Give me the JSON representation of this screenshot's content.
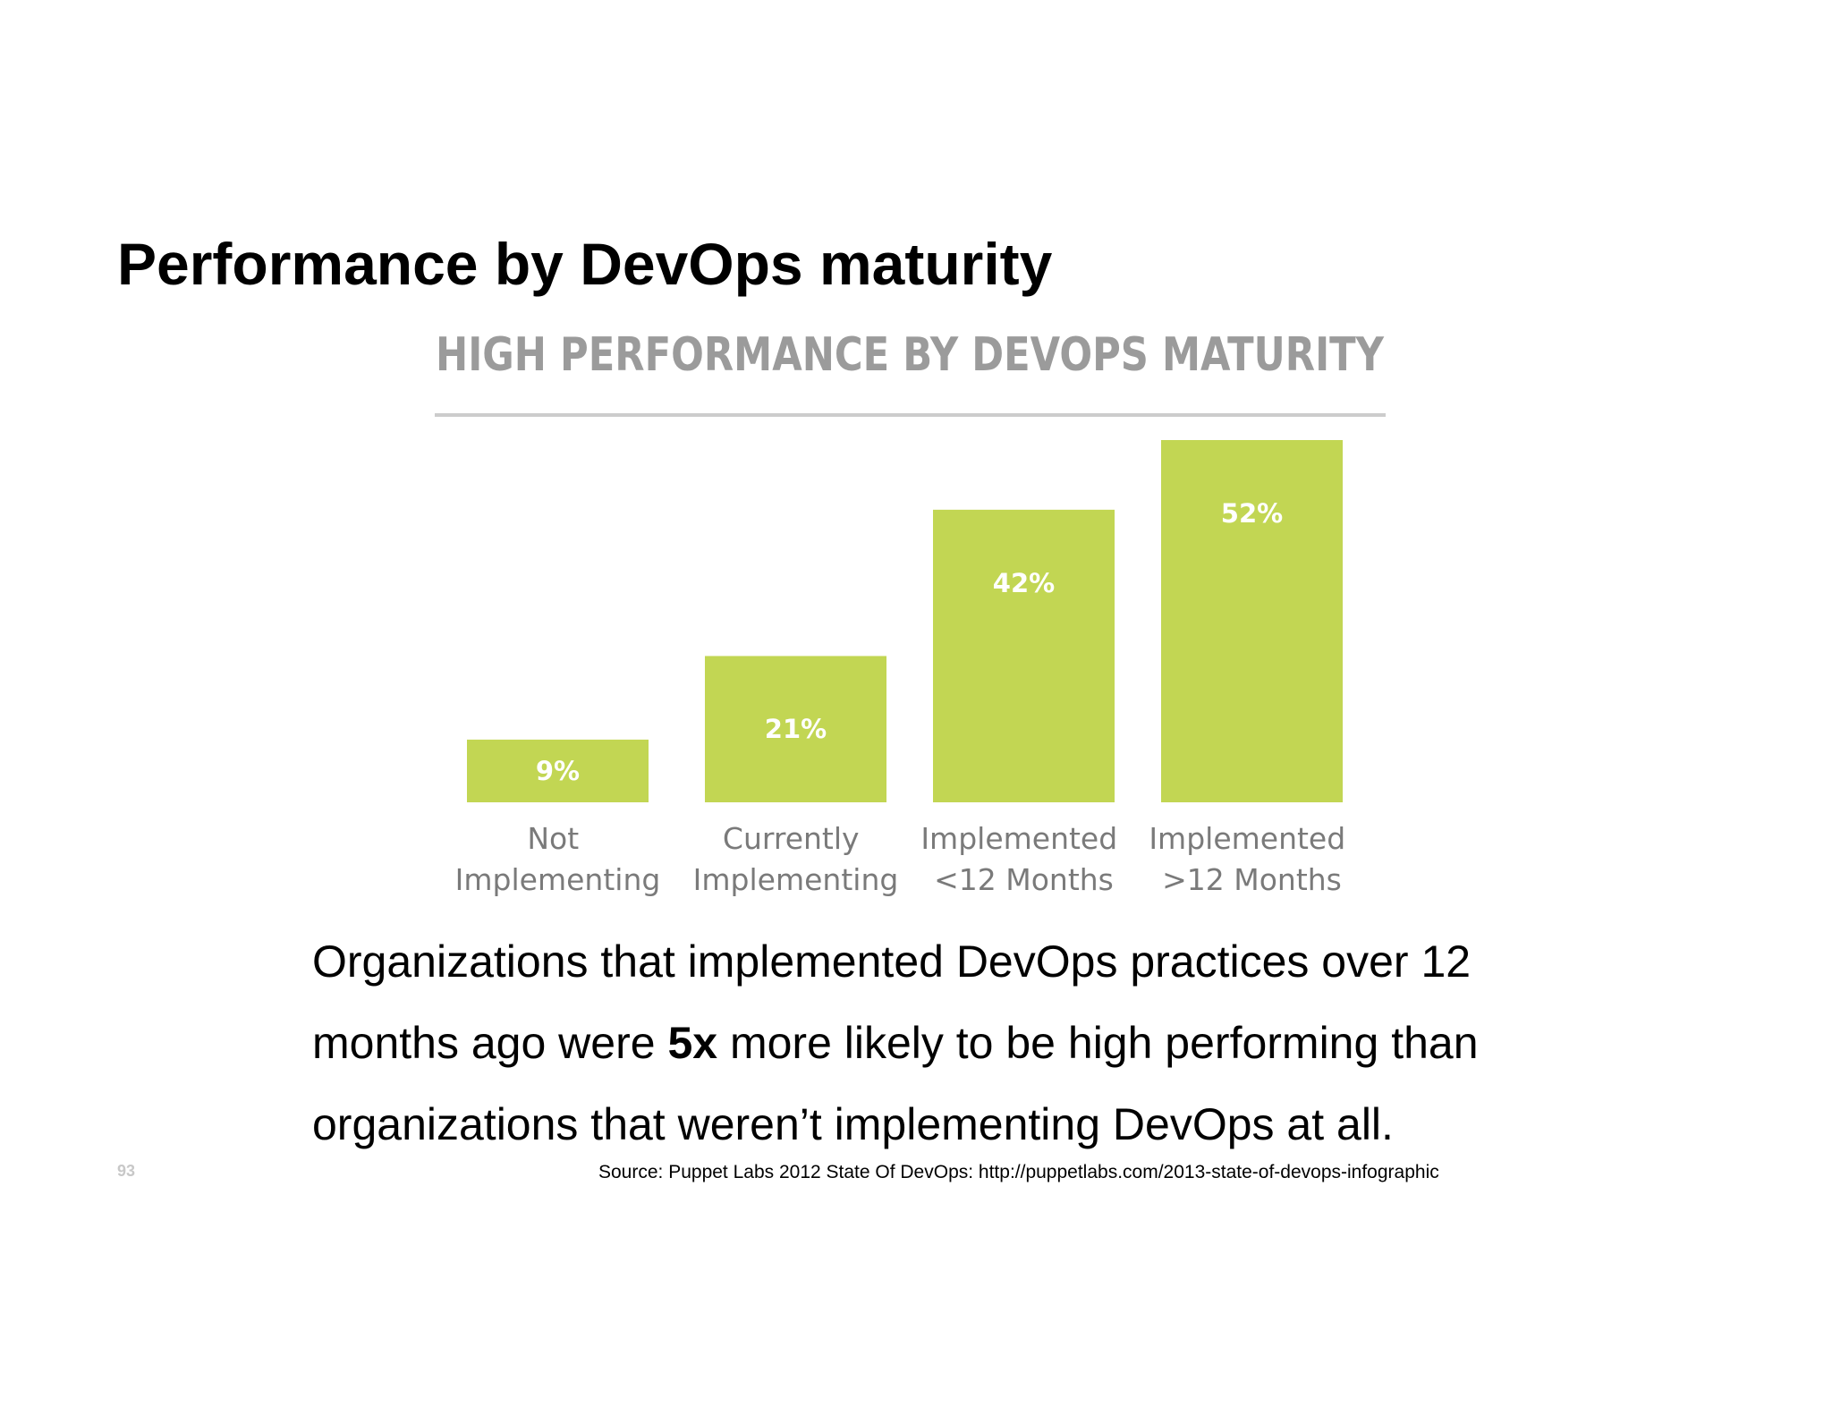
{
  "slide": {
    "title": "Performance by DevOps maturity",
    "body": [
      "Organizations that implemented DevOps practices over 12 months ago were ",
      "5x",
      " more likely to be high performing than organizations that weren’t implementing DevOps at all."
    ],
    "source": "Source: Puppet Labs 2012 State Of DevOps: http://puppetlabs.com/2013-state-of-devops-infographic",
    "page_number": "93"
  },
  "chart_data": {
    "type": "bar",
    "title": "HIGH PERFORMANCE BY DEVOPS MATURITY",
    "categories": [
      "Not Implementing",
      "Currently Implementing",
      "Implemented <12 Months",
      "Implemented >12 Months"
    ],
    "values": [
      9,
      21,
      42,
      52
    ],
    "value_labels": [
      "9%",
      "21%",
      "42%",
      "52%"
    ],
    "color": "#c2d653"
  }
}
